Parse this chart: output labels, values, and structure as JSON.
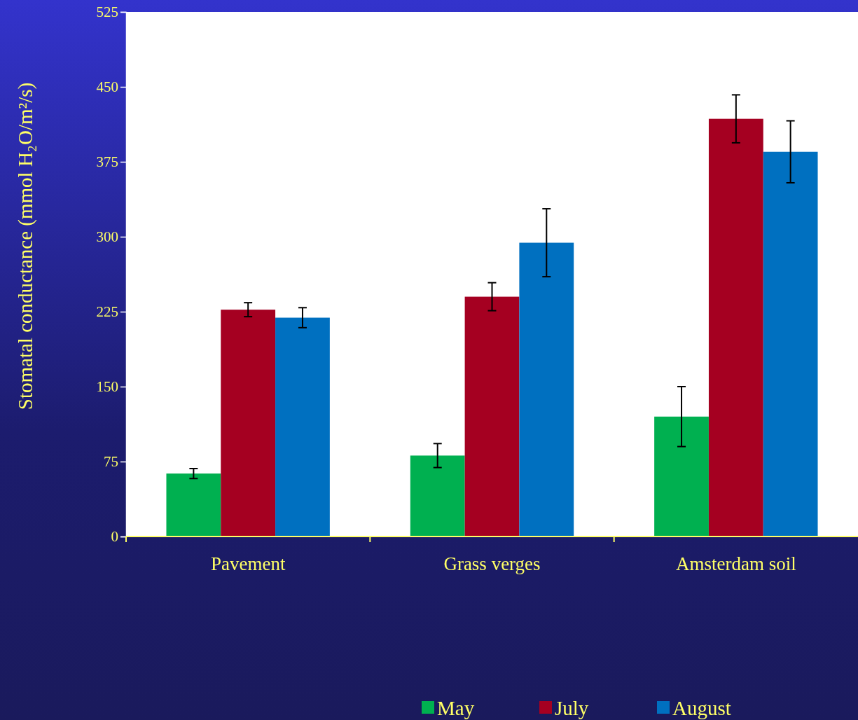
{
  "chart_data": {
    "type": "bar",
    "ylabel": "Stomatal conductance (mmol H₂O/m²/s)",
    "categories": [
      "Pavement",
      "Grass verges",
      "Amsterdam soil"
    ],
    "series": [
      {
        "name": "May",
        "color": "#00b050",
        "values": [
          63,
          81,
          120
        ],
        "errors": [
          5,
          12,
          30
        ]
      },
      {
        "name": "July",
        "color": "#a50021",
        "values": [
          227,
          240,
          418
        ],
        "errors": [
          7,
          14,
          24
        ]
      },
      {
        "name": "August",
        "color": "#0070c0",
        "values": [
          219,
          294,
          385
        ],
        "errors": [
          10,
          34,
          31
        ]
      }
    ],
    "ylim": [
      0,
      525
    ],
    "yticks": [
      0,
      75,
      150,
      225,
      300,
      375,
      450,
      525
    ],
    "grid": false,
    "legend": "bottom"
  }
}
